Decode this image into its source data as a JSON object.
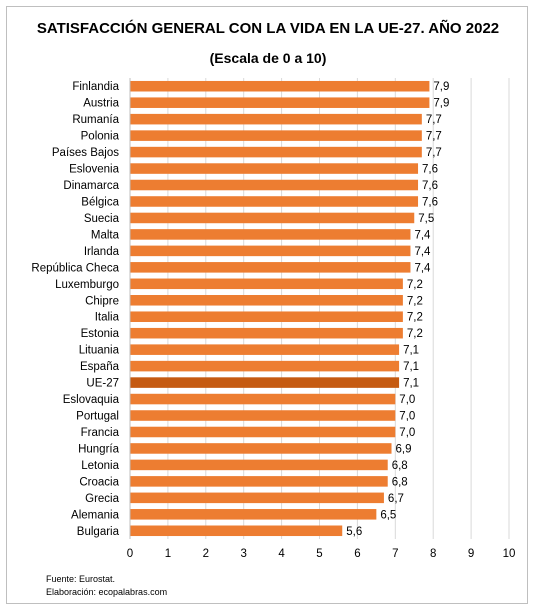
{
  "chart_data": {
    "type": "bar",
    "orientation": "horizontal",
    "title": "SATISFACCIÓN GENERAL CON LA VIDA EN LA UE-27. AÑO 2022",
    "subtitle": "(Escala de 0 a 10)",
    "categories": [
      "Finlandia",
      "Austria",
      "Rumanía",
      "Polonia",
      "Países Bajos",
      "Eslovenia",
      "Dinamarca",
      "Bélgica",
      "Suecia",
      "Malta",
      "Irlanda",
      "República Checa",
      "Luxemburgo",
      "Chipre",
      "Italia",
      "Estonia",
      "Lituania",
      "España",
      "UE-27",
      "Eslovaquia",
      "Portugal",
      "Francia",
      "Hungría",
      "Letonia",
      "Croacia",
      "Grecia",
      "Alemania",
      "Bulgaria"
    ],
    "values": [
      7.9,
      7.9,
      7.7,
      7.7,
      7.7,
      7.6,
      7.6,
      7.6,
      7.5,
      7.4,
      7.4,
      7.4,
      7.2,
      7.2,
      7.2,
      7.2,
      7.1,
      7.1,
      7.1,
      7.0,
      7.0,
      7.0,
      6.9,
      6.8,
      6.8,
      6.7,
      6.5,
      5.6
    ],
    "value_labels": [
      "7,9",
      "7,9",
      "7,7",
      "7,7",
      "7,7",
      "7,6",
      "7,6",
      "7,6",
      "7,5",
      "7,4",
      "7,4",
      "7,4",
      "7,2",
      "7,2",
      "7,2",
      "7,2",
      "7,1",
      "7,1",
      "7,1",
      "7,0",
      "7,0",
      "7,0",
      "6,9",
      "6,8",
      "6,8",
      "6,7",
      "6,5",
      "5,6"
    ],
    "highlight_category": "UE-27",
    "xlim": [
      0,
      10
    ],
    "xticks": [
      "0",
      "1",
      "2",
      "3",
      "4",
      "5",
      "6",
      "7",
      "8",
      "9",
      "10"
    ],
    "grid": true,
    "legend": "none",
    "colors": {
      "bar": "#ED7D31",
      "highlight": "#C55A11",
      "grid": "#d9d9d9"
    }
  },
  "notes": {
    "source": "Fuente: Eurostat.",
    "credit": "Elaboración: ecopalabras.com"
  }
}
